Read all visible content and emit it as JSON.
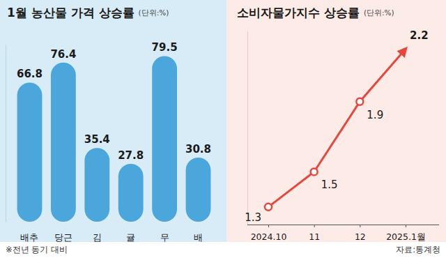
{
  "chart_data": [
    {
      "type": "bar",
      "title": "1월 농산물 가격 상승률",
      "subtitle": "(단위:%)",
      "categories": [
        "배추",
        "당근",
        "김",
        "귤",
        "무",
        "배"
      ],
      "values": [
        66.8,
        76.4,
        35.4,
        27.8,
        79.5,
        30.8
      ],
      "color": "#4ba6dc",
      "ylim": [
        0,
        85
      ],
      "tick_labels": false,
      "data_labels": true,
      "annotations": [
        "※전년 동기 대비"
      ]
    },
    {
      "type": "line",
      "title": "소비자물가지수 상승률",
      "subtitle": "(단위:%)",
      "categories": [
        "2024.10",
        "11",
        "12",
        "2025.1월"
      ],
      "values": [
        1.3,
        1.5,
        1.9,
        2.2
      ],
      "color": "#e8463c",
      "ylim": [
        1.2,
        2.3
      ],
      "tick_labels": "x",
      "data_labels": true,
      "marker": "circle",
      "annotations": [
        "자료:통계청"
      ]
    }
  ]
}
